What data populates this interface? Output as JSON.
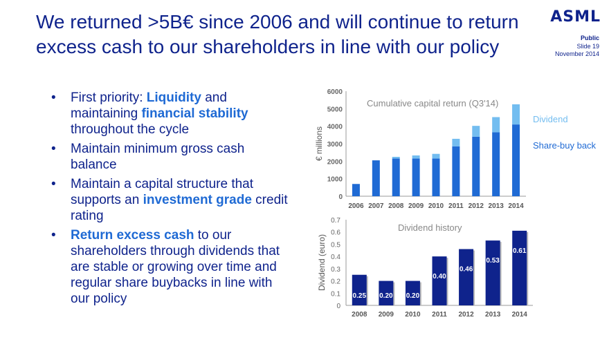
{
  "slide": {
    "title": "We returned >5B€ since 2006 and will continue to return excess cash to our shareholders in line with our policy",
    "logo": "ASML",
    "classification": "Public",
    "slide_number": "Slide 19",
    "date": "November 2014"
  },
  "bullets": [
    [
      {
        "t": "First priority: ",
        "b": false
      },
      {
        "t": "Liquidity",
        "b": true
      },
      {
        "t": " and maintaining ",
        "b": false
      },
      {
        "t": "financial stability",
        "b": true
      },
      {
        "t": " throughout the cycle",
        "b": false
      }
    ],
    [
      {
        "t": "Maintain minimum gross cash balance",
        "b": false
      }
    ],
    [
      {
        "t": "Maintain a capital structure that supports an ",
        "b": false
      },
      {
        "t": "investment grade",
        "b": true
      },
      {
        "t": " credit rating",
        "b": false
      }
    ],
    [
      {
        "t": "Return excess cash",
        "b": true
      },
      {
        "t": " to our shareholders through dividends that are stable or growing over time and regular share buybacks in line with our policy",
        "b": false
      }
    ]
  ],
  "colors": {
    "title": "#0f238c",
    "buyback": "#1f6ad4",
    "dividend": "#73bdf0",
    "dividend_history": "#0f238c",
    "highlight": "#1f6ad4"
  },
  "chart_data": [
    {
      "type": "bar",
      "stacked": true,
      "title": "Cumulative capital return (Q3'14)",
      "ylabel": "€ millions",
      "ylim": [
        0,
        6000
      ],
      "yticks": [
        0,
        1000,
        2000,
        3000,
        4000,
        5000,
        6000
      ],
      "categories": [
        "2006",
        "2007",
        "2008",
        "2009",
        "2010",
        "2011",
        "2012",
        "2013",
        "2014"
      ],
      "legend_placement": "right",
      "series": [
        {
          "name": "Share-buy back",
          "values": [
            700,
            2050,
            2150,
            2150,
            2150,
            2850,
            3400,
            3650,
            4100
          ]
        },
        {
          "name": "Dividend",
          "values": [
            0,
            0,
            100,
            180,
            270,
            430,
            620,
            870,
            1150
          ]
        }
      ]
    },
    {
      "type": "bar",
      "title": "Dividend history",
      "ylabel": "Dividend (euro)",
      "ylim": [
        0,
        0.7
      ],
      "yticks": [
        "0",
        "0.1",
        "0.2",
        "0.3",
        "0.4",
        "0.5",
        "0.6",
        "0.7"
      ],
      "categories": [
        "2008",
        "2009",
        "2010",
        "2011",
        "2012",
        "2013",
        "2014"
      ],
      "values": [
        0.25,
        0.2,
        0.2,
        0.4,
        0.46,
        0.53,
        0.61
      ],
      "data_labels": [
        "0.25",
        "0.20",
        "0.20",
        "0.40",
        "0.46",
        "0.53",
        "0.61"
      ]
    }
  ]
}
